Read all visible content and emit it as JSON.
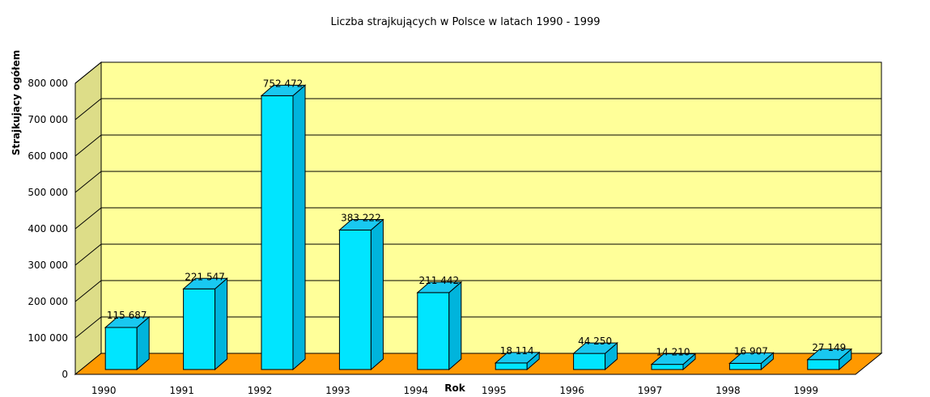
{
  "chart_data": {
    "type": "bar",
    "title": "Liczba strajkujących w Polsce w latach 1990 - 1999",
    "xlabel": "Rok",
    "ylabel": "Strajkujący ogółem",
    "categories": [
      "1990",
      "1991",
      "1992",
      "1993",
      "1994",
      "1995",
      "1996",
      "1997",
      "1998",
      "1999"
    ],
    "values": [
      115687,
      221547,
      752472,
      383222,
      211442,
      18114,
      44250,
      14210,
      16907,
      27149
    ],
    "data_labels": [
      "115 687",
      "221 547",
      "752 472",
      "383 222",
      "211 442",
      "18 114",
      "44 250",
      "14 210",
      "16 907",
      "27 149"
    ],
    "ylim": [
      0,
      800000
    ],
    "yticks": [
      0,
      100000,
      200000,
      300000,
      400000,
      500000,
      600000,
      700000,
      800000
    ],
    "ytick_labels": [
      "0",
      "100 000",
      "200 000",
      "300 000",
      "400 000",
      "500 000",
      "600 000",
      "700 000",
      "800 000"
    ],
    "grid": true,
    "legend": "none",
    "colors": {
      "bar_front": "#00E5FF",
      "bar_side": "#00B4DC",
      "bar_top": "#19C8F0",
      "back_wall": "#FFFF99",
      "side_wall": "#DDDD88",
      "floor": "#FF9900",
      "gridline": "#000000"
    }
  }
}
